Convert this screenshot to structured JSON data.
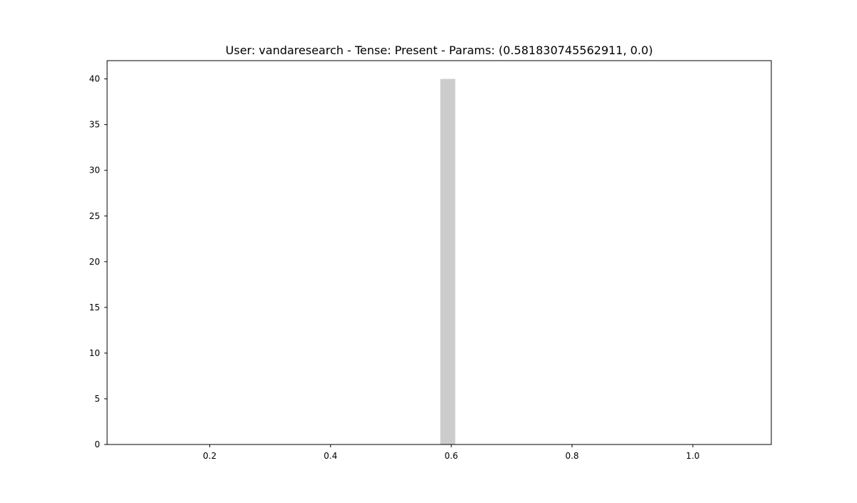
{
  "chart_data": {
    "type": "bar",
    "title": "User: vandaresearch - Tense: Present - Params: (0.581830745562911, 0.0)",
    "xlabel": "",
    "ylabel": "",
    "xlim": [
      0.03,
      1.13
    ],
    "ylim": [
      0,
      42
    ],
    "x_ticks": [
      0.2,
      0.4,
      0.6,
      0.8,
      1.0
    ],
    "x_tick_labels": [
      "0.2",
      "0.4",
      "0.6",
      "0.8",
      "1.0"
    ],
    "y_ticks": [
      0,
      5,
      10,
      15,
      20,
      25,
      30,
      35,
      40
    ],
    "y_tick_labels": [
      "0",
      "5",
      "10",
      "15",
      "20",
      "25",
      "30",
      "35",
      "40"
    ],
    "grid": false,
    "bars": [
      {
        "x_start": 0.5818,
        "x_end": 0.6066,
        "value": 40
      }
    ],
    "colors": {
      "bar": "#cccccc",
      "axes": "#000000",
      "background": "#ffffff"
    }
  }
}
